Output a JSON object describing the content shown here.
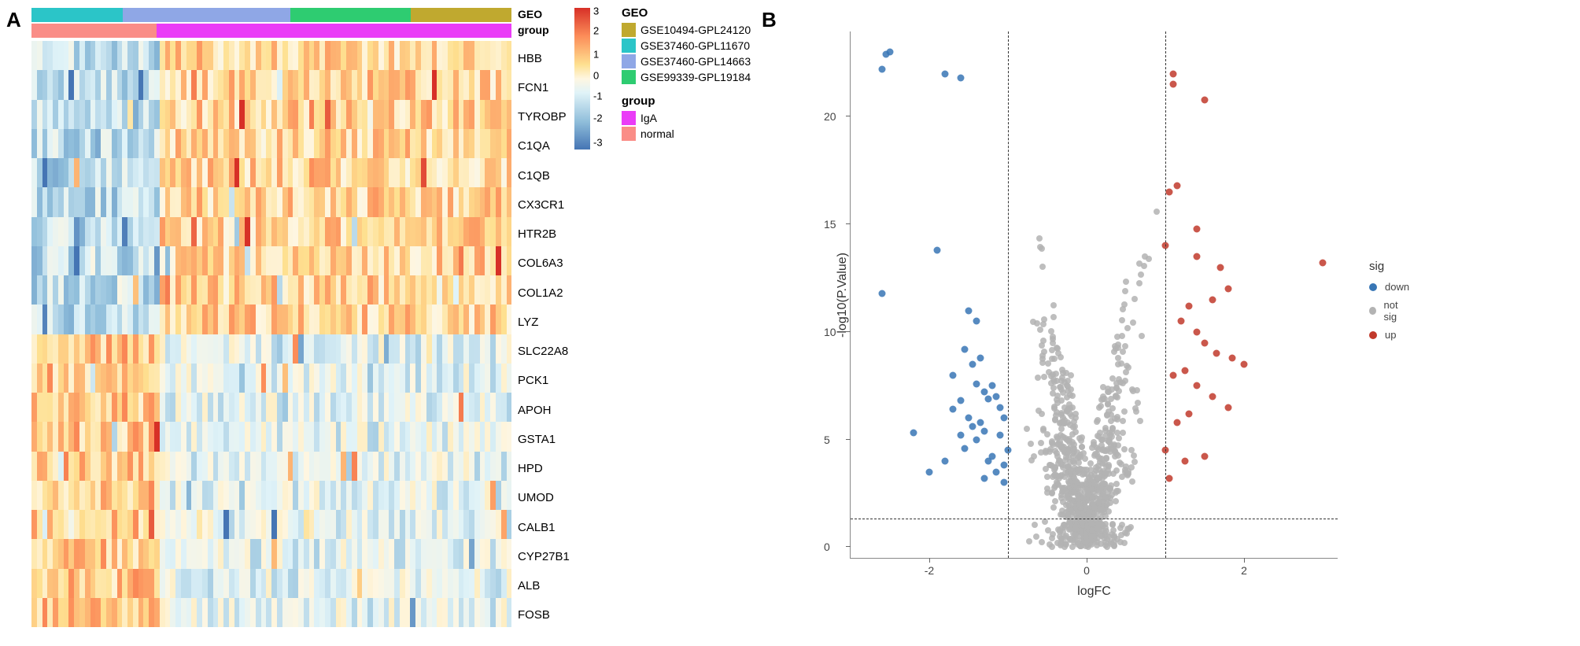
{
  "panelA": {
    "label": "A",
    "geo_bar_label": "GEO",
    "group_bar_label": "group",
    "geo_segments": [
      {
        "width_pct": 19,
        "color": "#2bc5c8"
      },
      {
        "width_pct": 35,
        "color": "#8fa7e6"
      },
      {
        "width_pct": 25,
        "color": "#2ecc71"
      },
      {
        "width_pct": 21,
        "color": "#c0a92f"
      }
    ],
    "group_segments": [
      {
        "width_pct": 26,
        "color": "#fa8d87"
      },
      {
        "width_pct": 74,
        "color": "#ea3cf7"
      }
    ],
    "genes": [
      "HBB",
      "FCN1",
      "TYROBP",
      "C1QA",
      "C1QB",
      "CX3CR1",
      "HTR2B",
      "COL6A3",
      "COL1A2",
      "LYZ",
      "SLC22A8",
      "PCK1",
      "APOH",
      "GSTA1",
      "HPD",
      "UMOD",
      "CALB1",
      "CYP27B1",
      "ALB",
      "FOSB"
    ],
    "n_cols": 90,
    "heatmap_colors": {
      "high": "#d73027",
      "midhigh": "#fc8d59",
      "lowmid": "#fee090",
      "zero": "#fef6e1",
      "midlow": "#e0f3f8",
      "low": "#91bfdb",
      "vlow": "#4575b4"
    },
    "gradient_ticks": [
      {
        "label": "3",
        "pos_pct": 2
      },
      {
        "label": "2",
        "pos_pct": 16
      },
      {
        "label": "1",
        "pos_pct": 33
      },
      {
        "label": "0",
        "pos_pct": 48
      },
      {
        "label": "-1",
        "pos_pct": 62
      },
      {
        "label": "-2",
        "pos_pct": 78
      },
      {
        "label": "-3",
        "pos_pct": 95
      }
    ],
    "geo_legend": {
      "title": "GEO",
      "items": [
        {
          "color": "#c0a92f",
          "label": "GSE10494-GPL24120"
        },
        {
          "color": "#2bc5c8",
          "label": "GSE37460-GPL11670"
        },
        {
          "color": "#8fa7e6",
          "label": "GSE37460-GPL14663"
        },
        {
          "color": "#2ecc71",
          "label": "GSE99339-GPL19184"
        }
      ]
    },
    "group_legend": {
      "title": "group",
      "items": [
        {
          "color": "#ea3cf7",
          "label": "IgA"
        },
        {
          "color": "#fa8d87",
          "label": "normal"
        }
      ]
    }
  },
  "panelB": {
    "label": "B",
    "xlabel": "logFC",
    "ylabel": "-log10(P.Value)",
    "xlim": [
      -3,
      3.2
    ],
    "ylim": [
      -0.5,
      24
    ],
    "xticks": [
      -2,
      0,
      2
    ],
    "yticks": [
      0,
      5,
      10,
      15,
      20
    ],
    "vlines": [
      -1,
      1
    ],
    "hline": 1.3,
    "sig_legend": {
      "title": "sig",
      "items": [
        {
          "color": "#3876b5",
          "label": "down"
        },
        {
          "color": "#b3b3b3",
          "label": "not sig"
        },
        {
          "color": "#c1392b",
          "label": "up"
        }
      ]
    },
    "colors": {
      "up": "#c1392b",
      "down": "#3876b5",
      "ns": "#b3b3b3"
    },
    "points_down": [
      [
        -2.5,
        23.0
      ],
      [
        -2.55,
        22.9
      ],
      [
        -2.6,
        22.2
      ],
      [
        -1.8,
        22.0
      ],
      [
        -1.6,
        21.8
      ],
      [
        -1.9,
        13.8
      ],
      [
        -2.6,
        11.8
      ],
      [
        -1.5,
        11.0
      ],
      [
        -1.4,
        10.5
      ],
      [
        -1.7,
        8.0
      ],
      [
        -1.55,
        9.2
      ],
      [
        -1.45,
        8.5
      ],
      [
        -1.35,
        8.8
      ],
      [
        -1.4,
        7.6
      ],
      [
        -1.3,
        7.2
      ],
      [
        -1.25,
        6.9
      ],
      [
        -1.2,
        7.5
      ],
      [
        -1.15,
        7.0
      ],
      [
        -1.1,
        6.5
      ],
      [
        -1.6,
        6.8
      ],
      [
        -1.5,
        6.0
      ],
      [
        -1.45,
        5.6
      ],
      [
        -1.35,
        5.8
      ],
      [
        -1.3,
        5.4
      ],
      [
        -1.1,
        5.2
      ],
      [
        -1.05,
        6.0
      ],
      [
        -1.0,
        4.5
      ],
      [
        -1.2,
        4.2
      ],
      [
        -1.4,
        5.0
      ],
      [
        -1.6,
        5.2
      ],
      [
        -2.2,
        5.3
      ],
      [
        -1.8,
        4.0
      ],
      [
        -2.0,
        3.5
      ],
      [
        -1.55,
        4.6
      ],
      [
        -1.25,
        4.0
      ],
      [
        -1.05,
        3.8
      ],
      [
        -1.15,
        3.5
      ],
      [
        -1.05,
        3.0
      ],
      [
        -1.3,
        3.2
      ],
      [
        -1.7,
        6.4
      ]
    ],
    "points_up": [
      [
        1.1,
        22.0
      ],
      [
        1.1,
        21.5
      ],
      [
        1.5,
        20.8
      ],
      [
        3.0,
        13.2
      ],
      [
        1.4,
        14.8
      ],
      [
        1.15,
        16.8
      ],
      [
        1.05,
        16.5
      ],
      [
        1.0,
        14.0
      ],
      [
        1.4,
        13.5
      ],
      [
        1.7,
        13.0
      ],
      [
        1.8,
        12.0
      ],
      [
        1.6,
        11.5
      ],
      [
        1.3,
        11.2
      ],
      [
        1.2,
        10.5
      ],
      [
        1.4,
        10.0
      ],
      [
        1.5,
        9.5
      ],
      [
        1.65,
        9.0
      ],
      [
        1.85,
        8.8
      ],
      [
        2.0,
        8.5
      ],
      [
        1.25,
        8.2
      ],
      [
        1.1,
        8.0
      ],
      [
        1.4,
        7.5
      ],
      [
        1.6,
        7.0
      ],
      [
        1.8,
        6.5
      ],
      [
        1.3,
        6.2
      ],
      [
        1.15,
        5.8
      ],
      [
        1.0,
        4.5
      ],
      [
        1.25,
        4.0
      ],
      [
        1.5,
        4.2
      ],
      [
        1.05,
        3.2
      ]
    ],
    "ns_cloud": {
      "n": 900,
      "x_center": 0,
      "x_spread": 1.4,
      "y_max": 18
    }
  }
}
